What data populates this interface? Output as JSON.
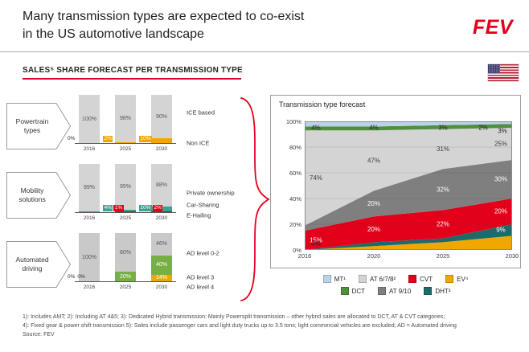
{
  "header": {
    "title": "Many transmission types are expected to co-exist\nin the US automotive landscape",
    "logo": "FEV"
  },
  "subtitle": "SALES⁵ SHARE FORECAST PER TRANSMISSION TYPE",
  "accent_color": "#e2001a",
  "rows": [
    {
      "label": "Powertrain types",
      "side_labels": [
        "ICE based",
        "Non ICE"
      ]
    },
    {
      "label": "Mobility solutions",
      "side_labels": [
        "Private ownership",
        "Car-Sharing",
        "E-Hailing"
      ]
    },
    {
      "label": "Automated driving",
      "side_labels": [
        "AD level 0-2",
        "AD level 3",
        "AD level 4"
      ]
    }
  ],
  "chart_data": [
    {
      "id": "powertrain",
      "type": "bar",
      "stacked": true,
      "stack_order": "bottom_to_top",
      "categories": [
        "2016",
        "2025",
        "2030"
      ],
      "series": [
        {
          "name": "Non ICE",
          "color": "#f0a800",
          "label_color": "#ffffff",
          "values": [
            0,
            2,
            10
          ],
          "labels": [
            "0%",
            "2%",
            "10%"
          ]
        },
        {
          "name": "ICE based",
          "color": "#d4d4d4",
          "label_color": "#595959",
          "values": [
            100,
            98,
            90
          ],
          "labels": [
            "100%",
            "98%",
            "90%"
          ]
        }
      ]
    },
    {
      "id": "mobility",
      "type": "bar",
      "stacked": true,
      "stack_order": "bottom_to_top",
      "categories": [
        "2016",
        "2025",
        "2030"
      ],
      "series": [
        {
          "name": "E-Hailing",
          "color": "#e2001a",
          "label_color": "#ffffff",
          "values": [
            0,
            1,
            2
          ],
          "labels": [
            null,
            "1%",
            "2%"
          ]
        },
        {
          "name": "Car-Sharing",
          "color": "#3aa394",
          "label_color": "#ffffff",
          "values": [
            1,
            4,
            10
          ],
          "labels": [
            null,
            "4%",
            "10%"
          ]
        },
        {
          "name": "Private ownership",
          "color": "#d4d4d4",
          "label_color": "#595959",
          "values": [
            99,
            95,
            88
          ],
          "labels": [
            "99%",
            "95%",
            "88%"
          ]
        }
      ]
    },
    {
      "id": "automated",
      "type": "bar",
      "stacked": true,
      "stack_order": "bottom_to_top",
      "categories": [
        "2016",
        "2025",
        "2030"
      ],
      "series": [
        {
          "name": "AD level 4",
          "color": "#f0a800",
          "label_color": "#ffffff",
          "values": [
            0,
            0,
            14
          ],
          "labels": [
            "0%",
            null,
            "14%"
          ]
        },
        {
          "name": "AD level 3",
          "color": "#76b043",
          "label_color": "#ffffff",
          "values": [
            0,
            20,
            40
          ],
          "labels": [
            "0%",
            "20%",
            "40%"
          ]
        },
        {
          "name": "AD level 0-2",
          "color": "#c9c9c9",
          "label_color": "#595959",
          "values": [
            100,
            80,
            46
          ],
          "labels": [
            "100%",
            "80%",
            "46%"
          ]
        }
      ]
    },
    {
      "id": "forecast",
      "type": "area",
      "title": "Transmission type forecast",
      "x": [
        "2016",
        "2020",
        "2025",
        "2030"
      ],
      "xticks": [
        "2016",
        "2020",
        "2025",
        "2030"
      ],
      "yticks": [
        "100%",
        "80%",
        "60%",
        "40%",
        "20%",
        "0%"
      ],
      "ylim": [
        0,
        100
      ],
      "grid": true,
      "legend_position": "below",
      "stack_order": [
        "EV",
        "DHT",
        "CVT",
        "AT910",
        "AT678",
        "DCT",
        "MT"
      ],
      "series": [
        {
          "key": "MT",
          "legend_label": "MT¹",
          "color": "#b9d3ea",
          "label_color": "#262626",
          "values": [
            4,
            4,
            3,
            2
          ]
        },
        {
          "key": "DCT",
          "legend_label": "DCT",
          "color": "#4f8f3d",
          "label_color": "#262626",
          "values": [
            3,
            3,
            3,
            3
          ]
        },
        {
          "key": "AT678",
          "legend_label": "AT 6/7/8²",
          "color": "#d4d4d4",
          "label_color": "#404040",
          "values": [
            74,
            47,
            31,
            25
          ]
        },
        {
          "key": "AT910",
          "legend_label": "AT 9/10",
          "color": "#7f7f7f",
          "label_color": "#ffffff",
          "values": [
            4,
            20,
            32,
            30
          ]
        },
        {
          "key": "CVT",
          "legend_label": "CVT",
          "color": "#e2001a",
          "label_color": "#ffffff",
          "values": [
            15,
            20,
            22,
            20
          ]
        },
        {
          "key": "DHT",
          "legend_label": "DHT³",
          "color": "#1b6b6b",
          "label_color": "#ffffff",
          "values": [
            0,
            3,
            3,
            9
          ]
        },
        {
          "key": "EV",
          "legend_label": "EV⁴",
          "color": "#f0a800",
          "label_color": "#262626",
          "values": [
            0,
            3,
            6,
            11
          ]
        }
      ],
      "labels": [
        {
          "series": "MT",
          "year": 0,
          "text": "4%"
        },
        {
          "series": "MT",
          "year": 1,
          "text": "4%"
        },
        {
          "series": "MT",
          "year": 2,
          "text": "3%"
        },
        {
          "series": "MT",
          "year": 3,
          "text": "2%",
          "dx": -36
        },
        {
          "series": "DCT",
          "year": 3,
          "text": "3%",
          "dx": -12,
          "dy": 4
        },
        {
          "series": "AT678",
          "year": 0,
          "text": "74%"
        },
        {
          "series": "AT678",
          "year": 1,
          "text": "47%"
        },
        {
          "series": "AT678",
          "year": 2,
          "text": "31%"
        },
        {
          "series": "AT678",
          "year": 3,
          "text": "25%"
        },
        {
          "series": "AT910",
          "year": 1,
          "text": "20%"
        },
        {
          "series": "AT910",
          "year": 2,
          "text": "32%"
        },
        {
          "series": "AT910",
          "year": 3,
          "text": "30%"
        },
        {
          "series": "CVT",
          "year": 0,
          "text": "15%"
        },
        {
          "series": "CVT",
          "year": 1,
          "text": "20%"
        },
        {
          "series": "CVT",
          "year": 2,
          "text": "22%"
        },
        {
          "series": "CVT",
          "year": 3,
          "text": "20%"
        },
        {
          "series": "DHT",
          "year": 3,
          "text": "9%"
        },
        {
          "series": "EV",
          "year": 0,
          "text": "0%",
          "dy": -3
        }
      ],
      "legend_rows": [
        [
          "MT",
          "AT678",
          "CVT",
          "EV"
        ],
        [
          "DCT",
          "AT910",
          "DHT"
        ]
      ]
    }
  ],
  "footnotes": {
    "line1": "1): Includes AMT; 2): Including AT 4&5; 3): Dedicated Hybrid transmission: Mainly Powersplit transmission – other hybrid sales are allocated to DCT, AT & CVT categories;",
    "line2": "4): Fixed gear & power shift transmission 5): Sales include passenger cars and light duty trucks up to 3.5 tons; light commercial vehicles are excluded; AD = Automated driving",
    "line3": "Source: FEV"
  }
}
